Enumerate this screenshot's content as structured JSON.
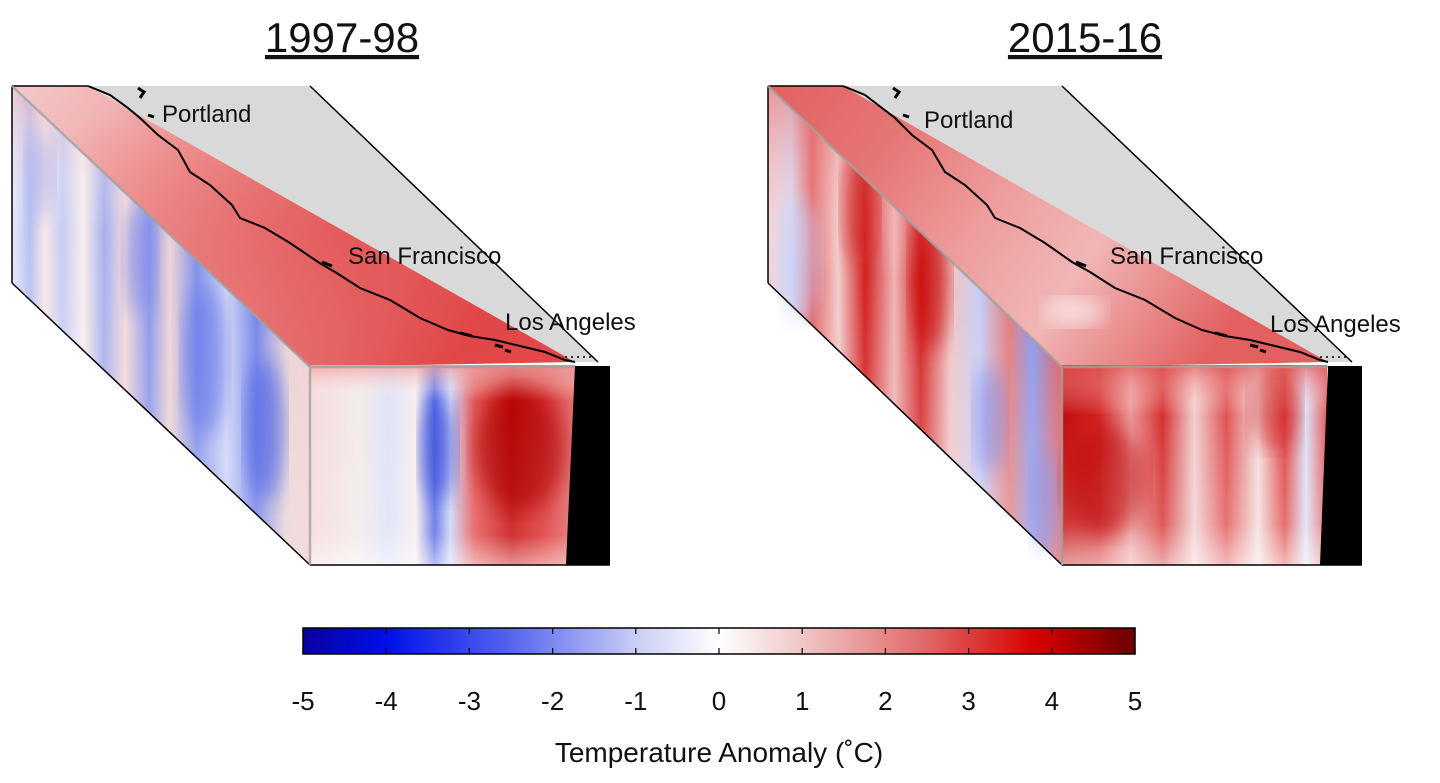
{
  "panels": [
    {
      "title": "1997-98",
      "cities": [
        "Portland",
        "San Francisco",
        "Los Angeles"
      ]
    },
    {
      "title": "2015-16",
      "cities": [
        "Portland",
        "San Francisco",
        "Los Angeles"
      ]
    }
  ],
  "colorbar": {
    "title": "Temperature Anomaly (˚C)",
    "ticks": [
      "-5",
      "-4",
      "-3",
      "-2",
      "-1",
      "0",
      "1",
      "2",
      "3",
      "4",
      "5"
    ],
    "range": [
      -5,
      5
    ],
    "colors": {
      "min": "#0000c8",
      "mid": "#ffffff",
      "max": "#7a0000"
    }
  },
  "colors": {
    "land": "#d9d9d9",
    "coast": "#000000",
    "warm": "#d9242a",
    "cool": "#5a6ee6"
  }
}
